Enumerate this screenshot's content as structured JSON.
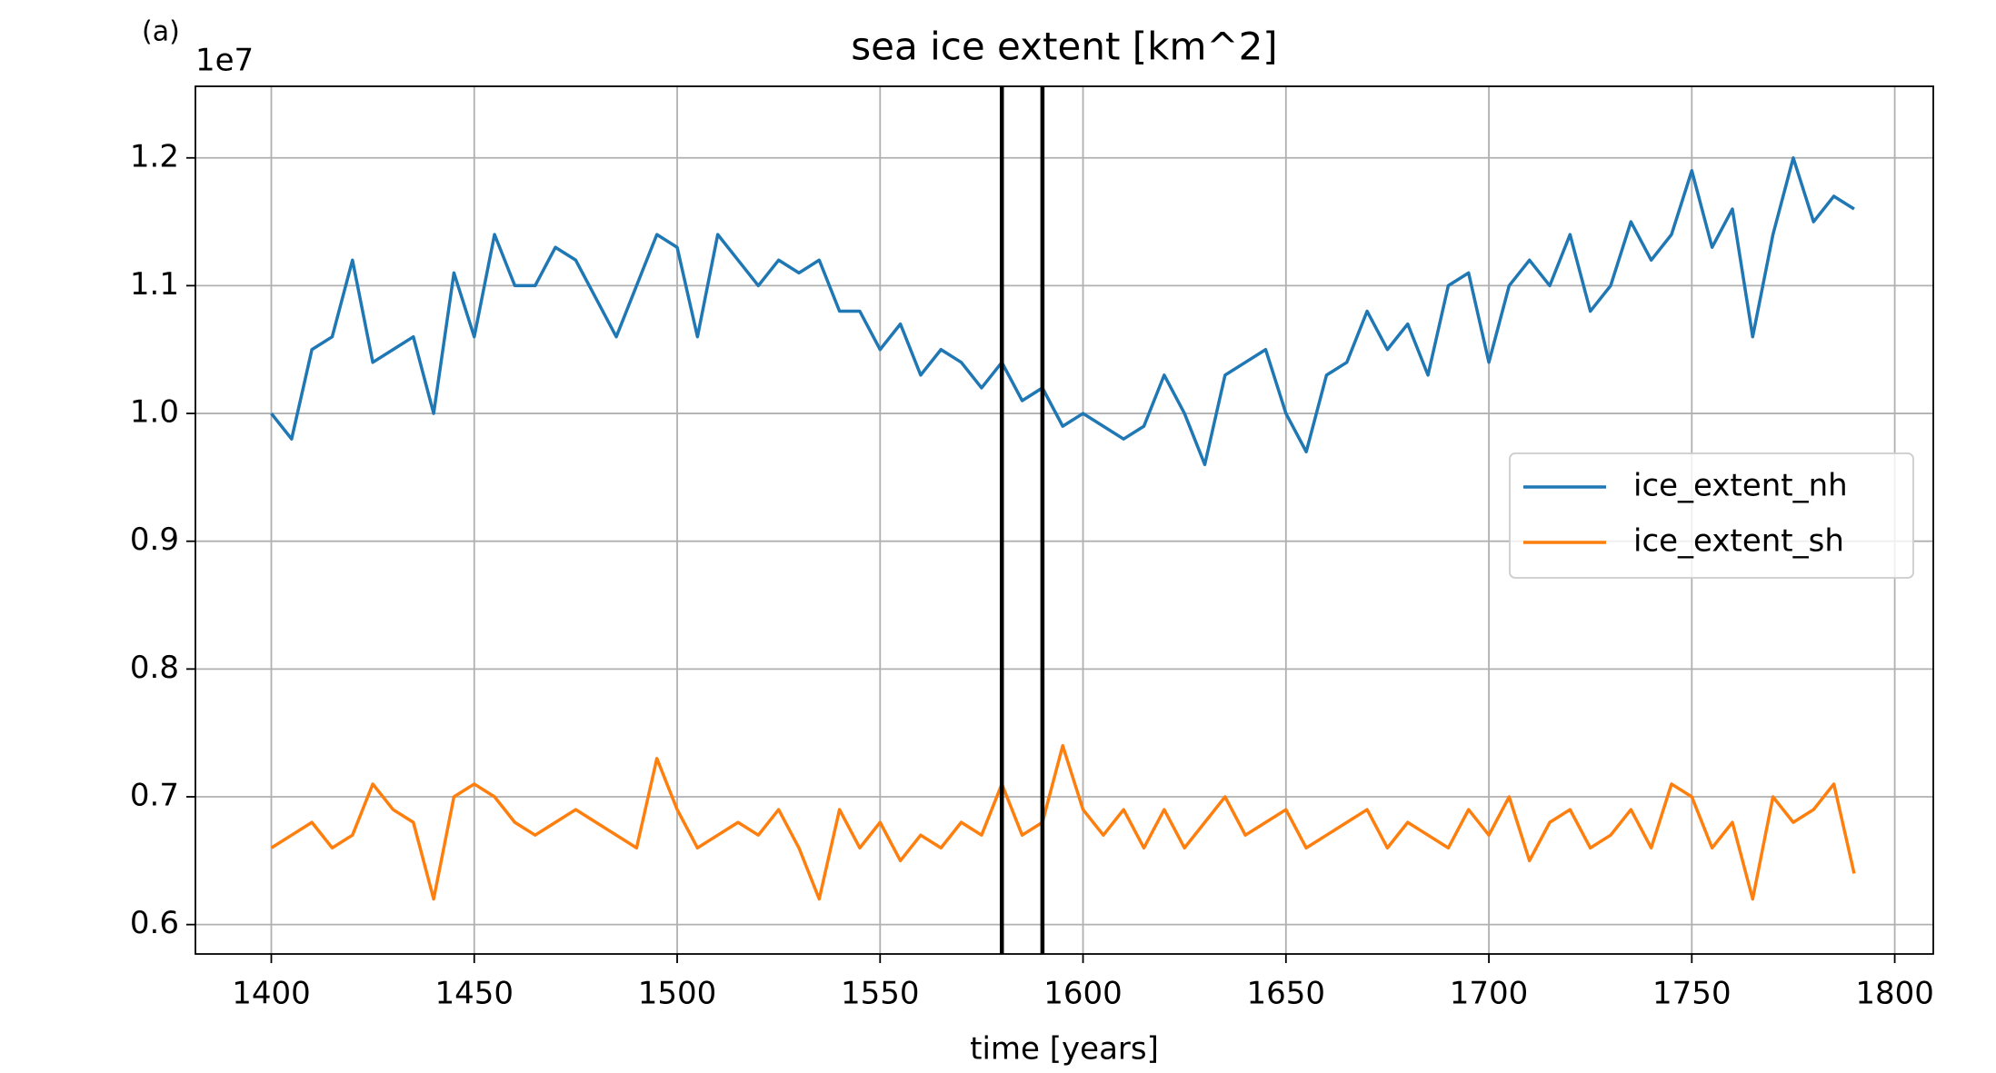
{
  "chart_data": {
    "type": "line",
    "title": "sea ice extent [km^2]",
    "panel_label": "(a)",
    "y_offset_label": "1e7",
    "xlabel": "time [years]",
    "x": [
      1400,
      1405,
      1410,
      1415,
      1420,
      1425,
      1430,
      1435,
      1440,
      1445,
      1450,
      1455,
      1460,
      1465,
      1470,
      1475,
      1480,
      1485,
      1490,
      1495,
      1500,
      1505,
      1510,
      1515,
      1520,
      1525,
      1530,
      1535,
      1540,
      1545,
      1550,
      1555,
      1560,
      1565,
      1570,
      1575,
      1580,
      1585,
      1590,
      1595,
      1600,
      1605,
      1610,
      1615,
      1620,
      1625,
      1630,
      1635,
      1640,
      1645,
      1650,
      1655,
      1660,
      1665,
      1670,
      1675,
      1680,
      1685,
      1690,
      1695,
      1700,
      1705,
      1710,
      1715,
      1720,
      1725,
      1730,
      1735,
      1740,
      1745,
      1750,
      1755,
      1760,
      1765,
      1770,
      1775,
      1780,
      1785,
      1790
    ],
    "series": [
      {
        "name": "ice_extent_nh",
        "color": "#1f77b4",
        "values": [
          1.0,
          0.98,
          1.05,
          1.06,
          1.12,
          1.04,
          1.05,
          1.06,
          1.0,
          1.11,
          1.06,
          1.14,
          1.1,
          1.1,
          1.13,
          1.12,
          1.09,
          1.06,
          1.1,
          1.14,
          1.13,
          1.06,
          1.14,
          1.12,
          1.1,
          1.12,
          1.11,
          1.12,
          1.08,
          1.08,
          1.05,
          1.07,
          1.03,
          1.05,
          1.04,
          1.02,
          1.04,
          1.01,
          1.02,
          0.99,
          1.0,
          0.99,
          0.98,
          0.99,
          1.03,
          1.0,
          0.96,
          1.03,
          1.04,
          1.05,
          1.0,
          0.97,
          1.03,
          1.04,
          1.08,
          1.05,
          1.07,
          1.03,
          1.1,
          1.11,
          1.04,
          1.1,
          1.12,
          1.1,
          1.14,
          1.08,
          1.1,
          1.15,
          1.12,
          1.14,
          1.19,
          1.13,
          1.16,
          1.06,
          1.14,
          1.2,
          1.15,
          1.17,
          1.16
        ]
      },
      {
        "name": "ice_extent_sh",
        "color": "#ff7f0e",
        "values": [
          0.66,
          0.67,
          0.68,
          0.66,
          0.67,
          0.71,
          0.69,
          0.68,
          0.62,
          0.7,
          0.71,
          0.7,
          0.68,
          0.67,
          0.68,
          0.69,
          0.68,
          0.67,
          0.66,
          0.73,
          0.69,
          0.66,
          0.67,
          0.68,
          0.67,
          0.69,
          0.66,
          0.62,
          0.69,
          0.66,
          0.68,
          0.65,
          0.67,
          0.66,
          0.68,
          0.67,
          0.71,
          0.67,
          0.68,
          0.74,
          0.69,
          0.67,
          0.69,
          0.66,
          0.69,
          0.66,
          0.68,
          0.7,
          0.67,
          0.68,
          0.69,
          0.66,
          0.67,
          0.68,
          0.69,
          0.66,
          0.68,
          0.67,
          0.66,
          0.69,
          0.67,
          0.7,
          0.65,
          0.68,
          0.69,
          0.66,
          0.67,
          0.69,
          0.66,
          0.71,
          0.7,
          0.66,
          0.68,
          0.62,
          0.7,
          0.68,
          0.69,
          0.71,
          0.64
        ]
      }
    ],
    "vlines": [
      1580,
      1590
    ],
    "vline_color": "#000000",
    "xlim": [
      1381.3,
      1809.5
    ],
    "xticks": [
      1400,
      1450,
      1500,
      1550,
      1600,
      1650,
      1700,
      1750,
      1800
    ],
    "ylim": [
      0.577,
      1.256
    ],
    "yticks": [
      0.6,
      0.7,
      0.8,
      0.9,
      {
        "value": 1.0,
        "label": "1.0"
      },
      1.1,
      1.2
    ],
    "grid": true,
    "legend": "center right"
  }
}
